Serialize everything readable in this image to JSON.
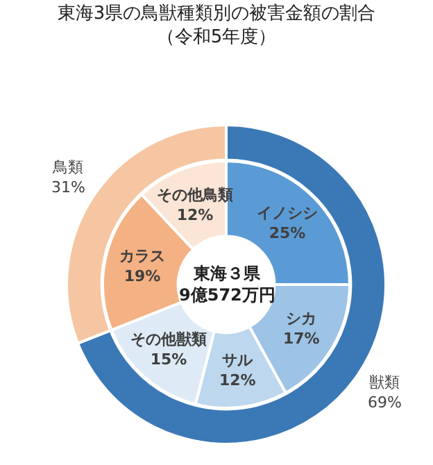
{
  "chart_data": [
    {
      "type": "donut",
      "title": "東海3県の鳥獣種類別の被害金額の割合（令和5年度）",
      "categories": [
        "獣類",
        "鳥類"
      ],
      "values": [
        69,
        31
      ],
      "value_labels": [
        "69%",
        "31%"
      ],
      "colors": [
        "#3b78b6",
        "#f6c6a2"
      ]
    },
    {
      "type": "donut",
      "annotations": [
        "東海３県\n9億572万円"
      ],
      "categories": [
        "イノシシ",
        "シカ",
        "サル",
        "その他獣類",
        "カラス",
        "その他鳥類"
      ],
      "values": [
        25,
        17,
        12,
        15,
        19,
        12
      ],
      "value_labels": [
        "25%",
        "17%",
        "12%",
        "15%",
        "19%",
        "12%"
      ],
      "colors": [
        "#5b9bd5",
        "#9dc3e6",
        "#bdd7ee",
        "#deebf7",
        "#f4b183",
        "#fbe5d6"
      ]
    }
  ]
}
